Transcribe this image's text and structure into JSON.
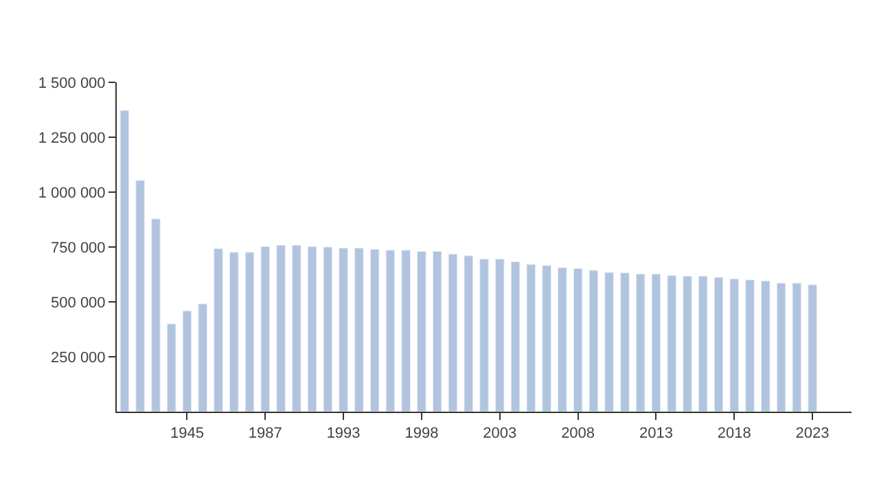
{
  "chart_data": {
    "type": "bar",
    "categories": [
      null,
      null,
      null,
      null,
      "1945",
      null,
      null,
      null,
      null,
      "1987",
      null,
      null,
      null,
      null,
      "1993",
      null,
      null,
      null,
      null,
      "1998",
      null,
      null,
      null,
      null,
      "2003",
      null,
      null,
      null,
      null,
      "2008",
      null,
      null,
      null,
      null,
      "2013",
      null,
      null,
      null,
      null,
      "2018",
      null,
      null,
      null,
      null,
      "2023"
    ],
    "values": [
      1372000,
      1053000,
      878000,
      400000,
      459000,
      491000,
      743000,
      726000,
      726000,
      752000,
      758000,
      758000,
      752000,
      750000,
      745000,
      745000,
      740000,
      735000,
      735000,
      730000,
      730000,
      718000,
      710000,
      695000,
      695000,
      683000,
      671000,
      666000,
      656000,
      652000,
      644000,
      634000,
      632000,
      627000,
      627000,
      620000,
      617000,
      617000,
      612000,
      605000,
      600000,
      595000,
      585000,
      585000,
      578000
    ],
    "color": "#b0c4de",
    "ylim": [
      0,
      1500000
    ],
    "yticks": [
      {
        "value": 250000,
        "label": "250 000"
      },
      {
        "value": 500000,
        "label": "500 000"
      },
      {
        "value": 750000,
        "label": "750 000"
      },
      {
        "value": 1000000,
        "label": "1 000 000"
      },
      {
        "value": 1250000,
        "label": "1 250 000"
      },
      {
        "value": 1500000,
        "label": "1 500 000"
      }
    ]
  }
}
